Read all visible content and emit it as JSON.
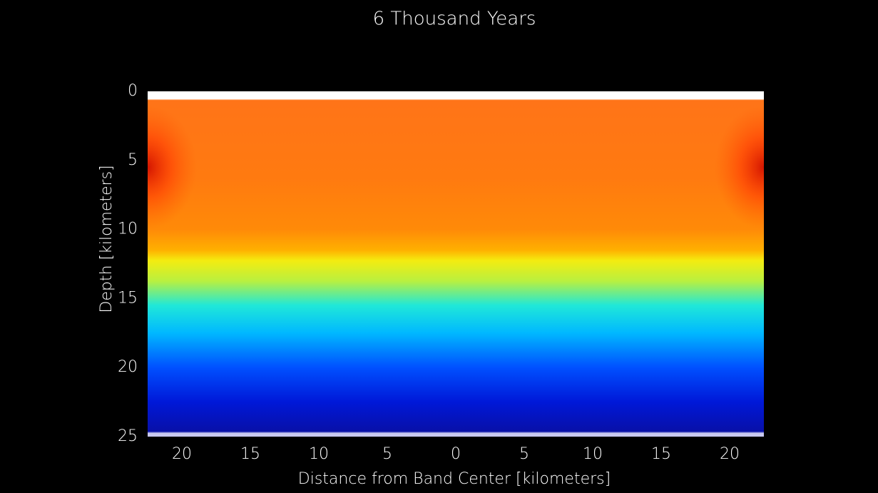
{
  "chart_data": {
    "type": "heatmap",
    "title": "6 Thousand Years",
    "x_label": "Distance from Band Center   [kilometers]",
    "y_label": "Depth   [kilometers]",
    "xlim": [
      -22.5,
      22.5
    ],
    "xticks": [
      {
        "value": -20,
        "label": "20"
      },
      {
        "value": -15,
        "label": "15"
      },
      {
        "value": -10,
        "label": "10"
      },
      {
        "value": -5,
        "label": "5"
      },
      0,
      5,
      10,
      15,
      20
    ],
    "ylim": [
      0,
      25
    ],
    "yticks": [
      0,
      5,
      10,
      15,
      20,
      25
    ],
    "y_inverted": true,
    "grid": false
  }
}
